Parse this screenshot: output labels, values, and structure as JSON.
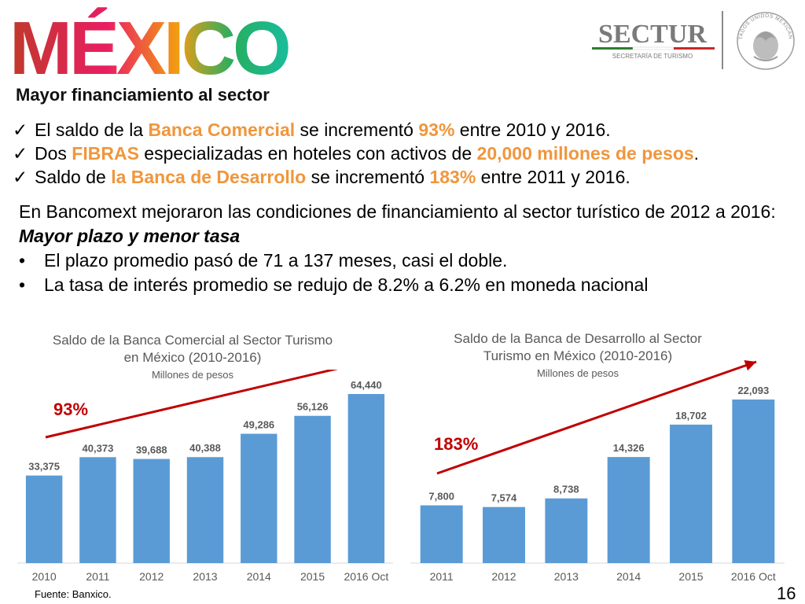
{
  "header": {
    "logo_text": "MÉXICO",
    "sectur_name": "SECTUR",
    "sectur_subtitle": "SECRETARÍA DE TURISMO",
    "seal_label": "ESTADOS UNIDOS MEXICANOS"
  },
  "section_title": "Mayor financiamiento al sector",
  "bullets": [
    {
      "parts": [
        "El saldo de la ",
        "Banca Comercial",
        " se incrementó  ",
        "93%",
        " entre 2010 y 2016."
      ]
    },
    {
      "parts": [
        "Dos ",
        "FIBRAS",
        " especializadas en hoteles con activos de ",
        "20,000 millones de pesos",
        "."
      ]
    },
    {
      "parts": [
        "Saldo de ",
        "la Banca de Desarrollo",
        " se incrementó ",
        "183%",
        " entre 2011 y 2016."
      ]
    }
  ],
  "paragraph": {
    "intro": "En Bancomext mejoraron las condiciones de financiamiento al sector turístico de 2012 a 2016:",
    "emphasis": "Mayor plazo y menor tasa",
    "items": [
      "El plazo promedio pasó de 71 a 137 meses, casi el doble.",
      "La tasa de interés promedio se redujo de 8.2% a 6.2% en moneda nacional"
    ]
  },
  "chart_data": [
    {
      "type": "bar",
      "title": "Saldo de la Banca Comercial al Sector Turismo en México (2010-2016)",
      "subtitle": "Millones de pesos",
      "categories": [
        "2010",
        "2011",
        "2012",
        "2013",
        "2014",
        "2015",
        "2016 Oct"
      ],
      "values": [
        33375,
        40373,
        39688,
        40388,
        49286,
        56126,
        64440
      ],
      "value_labels": [
        "33,375",
        "40,373",
        "39,688",
        "40,388",
        "49,286",
        "56,126",
        "64,440"
      ],
      "ylim": [
        0,
        64440
      ],
      "growth_label": "93%",
      "bar_color": "#5b9bd5",
      "arrow_color": "#c00000",
      "growth_color": "#c00000"
    },
    {
      "type": "bar",
      "title": "Saldo de la Banca de Desarrollo al Sector Turismo en México (2010-2016)",
      "subtitle": "Millones de pesos",
      "categories": [
        "2011",
        "2012",
        "2013",
        "2014",
        "2015",
        "2016 Oct"
      ],
      "values": [
        7800,
        7574,
        8738,
        14326,
        18702,
        22093
      ],
      "value_labels": [
        "7,800",
        "7,574",
        "8,738",
        "14,326",
        "18,702",
        "22,093"
      ],
      "ylim": [
        0,
        22093
      ],
      "growth_label": "183%",
      "bar_color": "#5b9bd5",
      "arrow_color": "#c00000",
      "growth_color": "#c00000"
    }
  ],
  "footer": {
    "source": "Fuente: Banxico.",
    "page_number": "16"
  }
}
